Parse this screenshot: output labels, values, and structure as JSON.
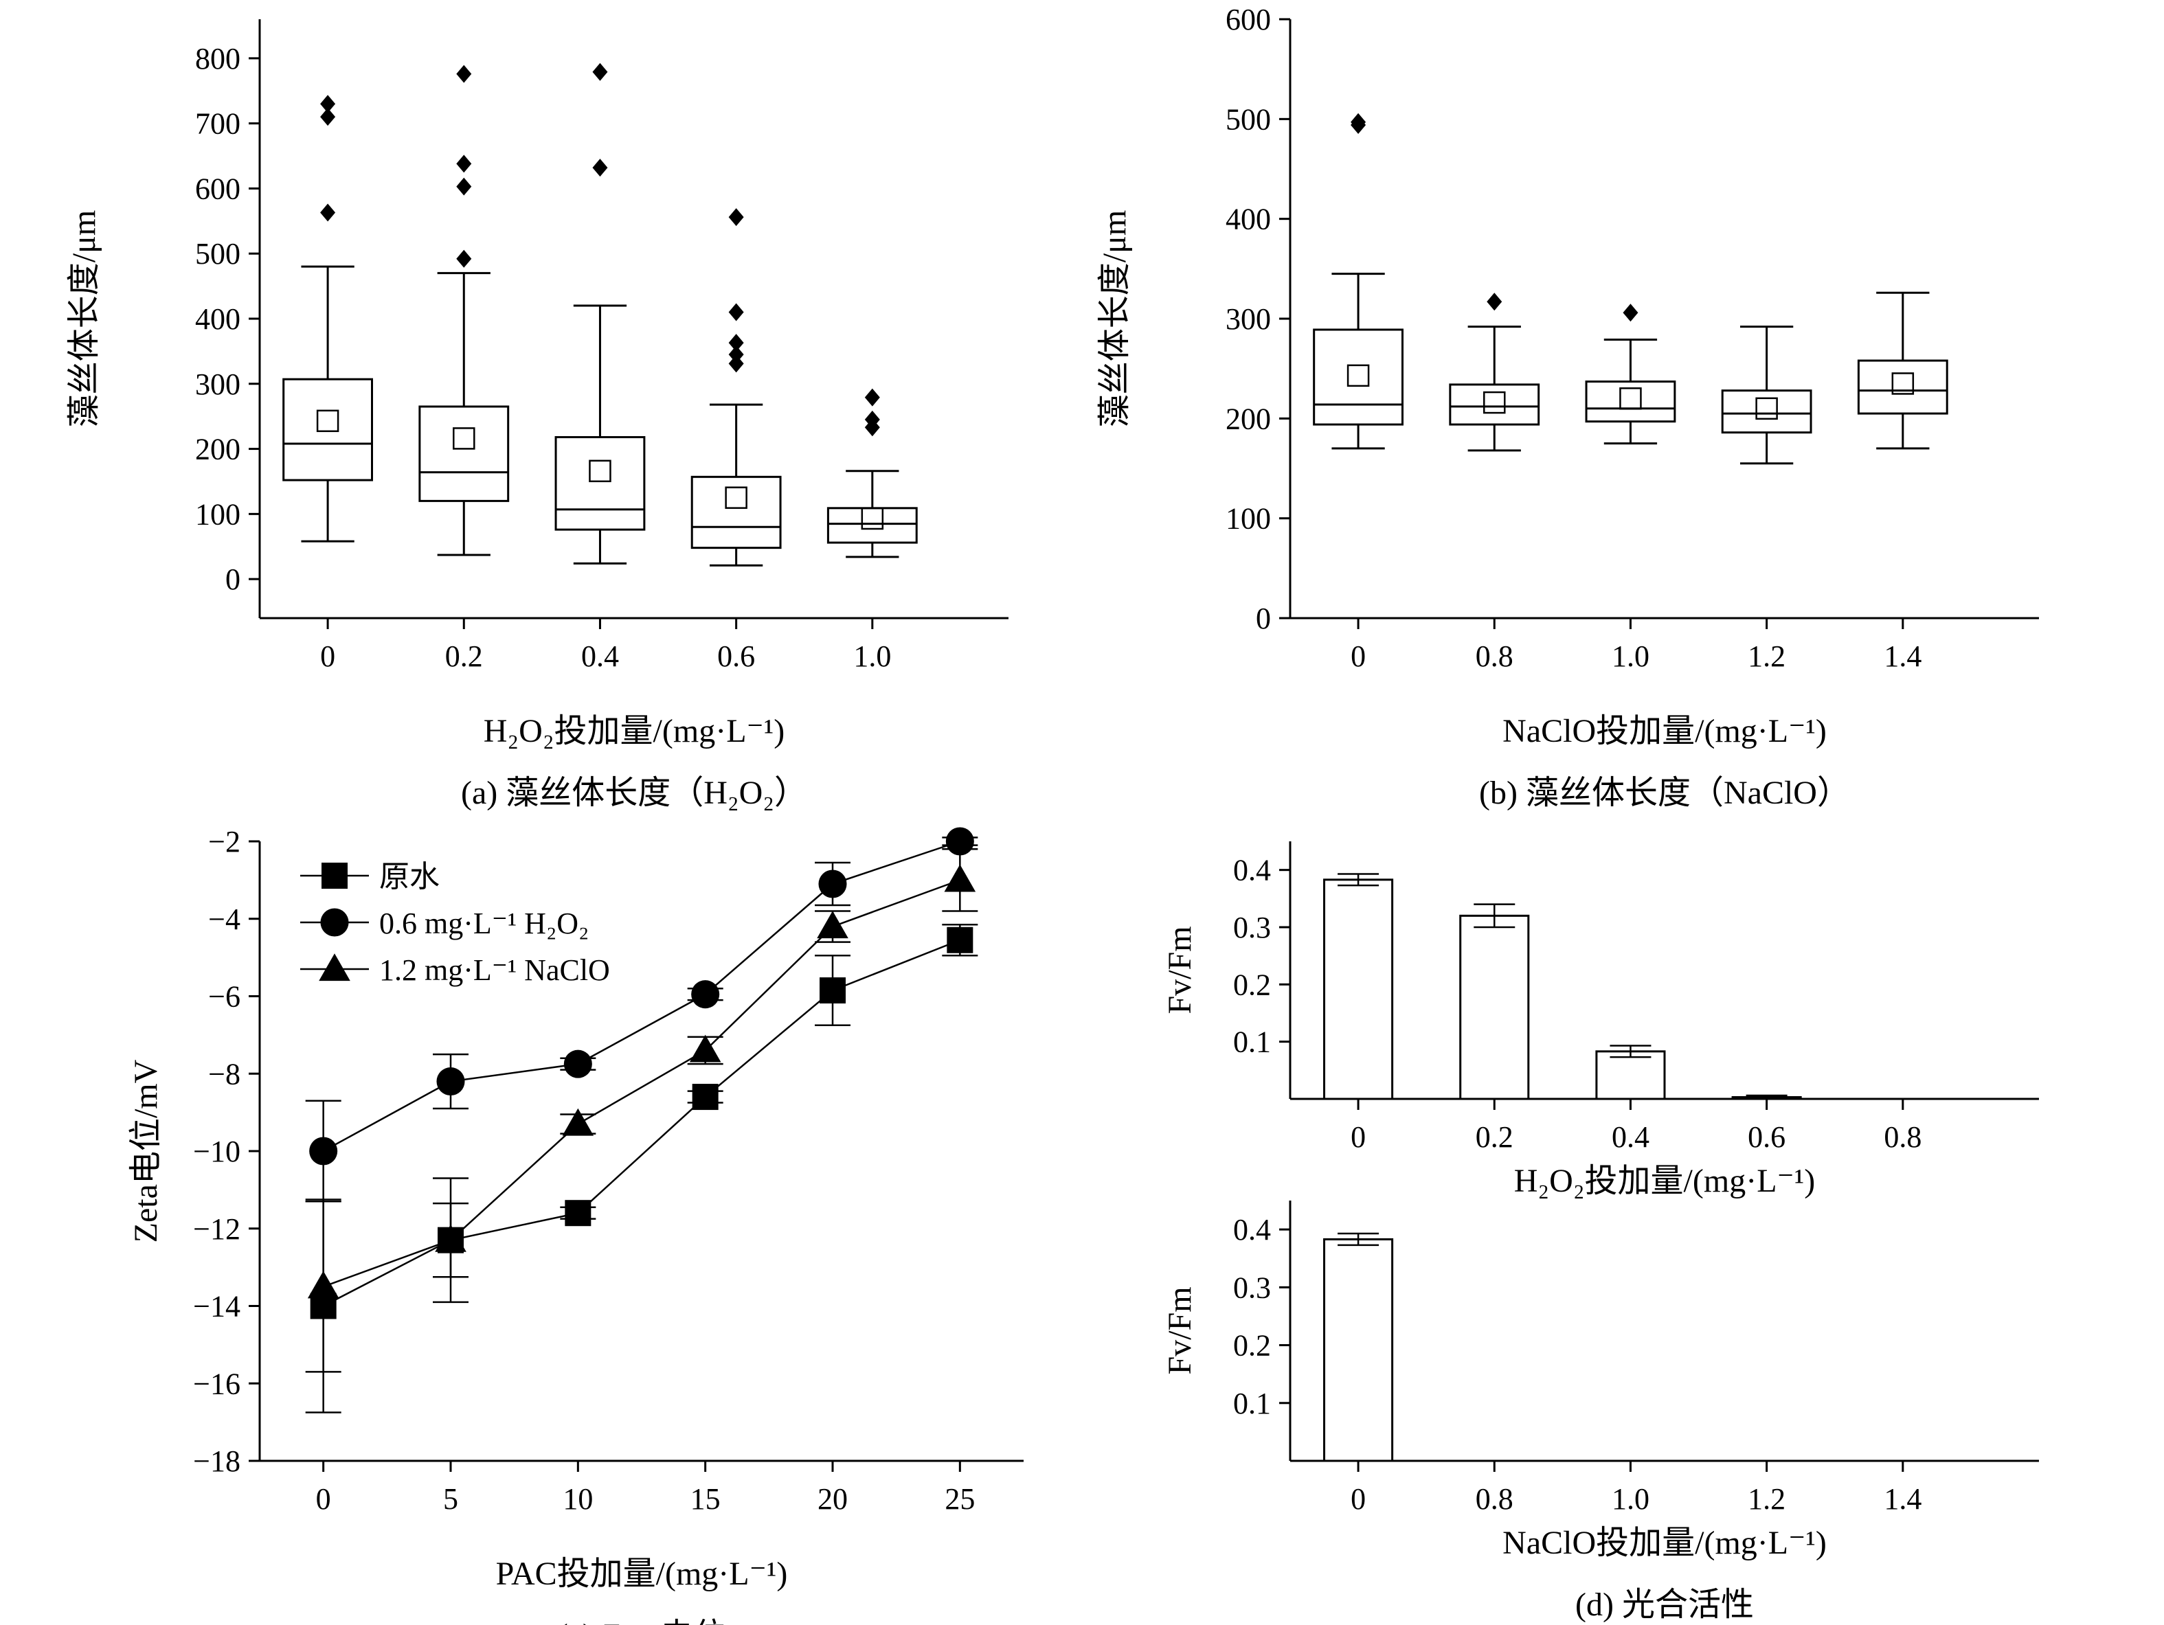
{
  "chart_data": [
    {
      "type": "box",
      "caption": "(a) 藻丝体长度（H₂O₂）",
      "ylabel": "藻丝体长度/μm",
      "xlabel": "H₂O₂投加量/(mg·L⁻¹)",
      "ylim": [
        -60,
        860
      ],
      "yticks": [
        0,
        100,
        200,
        300,
        400,
        500,
        600,
        700,
        800
      ],
      "categories": [
        "0",
        "0.2",
        "0.4",
        "0.6",
        "1.0"
      ],
      "boxes": [
        {
          "whisker_low": 58,
          "q1": 152,
          "median": 208,
          "q3": 307,
          "whisker_high": 480,
          "mean": 243,
          "outliers": [
            563,
            710,
            730
          ]
        },
        {
          "whisker_low": 37,
          "q1": 120,
          "median": 164,
          "q3": 265,
          "whisker_high": 470,
          "mean": 216,
          "outliers": [
            492,
            603,
            638,
            776
          ]
        },
        {
          "whisker_low": 24,
          "q1": 76,
          "median": 107,
          "q3": 218,
          "whisker_high": 420,
          "mean": 166,
          "outliers": [
            632,
            779
          ]
        },
        {
          "whisker_low": 21,
          "q1": 48,
          "median": 80,
          "q3": 157,
          "whisker_high": 268,
          "mean": 125,
          "outliers": [
            331,
            345,
            363,
            410,
            556
          ]
        },
        {
          "whisker_low": 34,
          "q1": 56,
          "median": 85,
          "q3": 109,
          "whisker_high": 166,
          "mean": 93,
          "outliers": [
            233,
            245,
            279
          ]
        }
      ]
    },
    {
      "type": "box",
      "caption": "(b) 藻丝体长度（NaClO）",
      "ylabel": "藻丝体长度/μm",
      "xlabel": "NaClO投加量/(mg·L⁻¹)",
      "ylim": [
        0,
        600
      ],
      "yticks": [
        0,
        100,
        200,
        300,
        400,
        500,
        600
      ],
      "categories": [
        "0",
        "0.8",
        "1.0",
        "1.2",
        "1.4"
      ],
      "boxes": [
        {
          "whisker_low": 170,
          "q1": 194,
          "median": 214,
          "q3": 289,
          "whisker_high": 345,
          "mean": 243,
          "outliers": [
            494,
            497
          ]
        },
        {
          "whisker_low": 168,
          "q1": 194,
          "median": 212,
          "q3": 234,
          "whisker_high": 292,
          "mean": 216,
          "outliers": [
            317
          ]
        },
        {
          "whisker_low": 175,
          "q1": 197,
          "median": 210,
          "q3": 237,
          "whisker_high": 279,
          "mean": 220,
          "outliers": [
            306
          ]
        },
        {
          "whisker_low": 155,
          "q1": 186,
          "median": 205,
          "q3": 228,
          "whisker_high": 292,
          "mean": 210,
          "outliers": []
        },
        {
          "whisker_low": 170,
          "q1": 205,
          "median": 228,
          "q3": 258,
          "whisker_high": 326,
          "mean": 235,
          "outliers": []
        }
      ]
    },
    {
      "type": "line",
      "caption": "(c) Zeta电位",
      "ylabel": "Zeta电位/mV",
      "xlabel": "PAC投加量/(mg·L⁻¹)",
      "x": [
        0,
        5,
        10,
        15,
        20,
        25
      ],
      "xlim": [
        -2.5,
        27.5
      ],
      "ylim": [
        -18,
        -2
      ],
      "xticks": [
        0,
        5,
        10,
        15,
        20,
        25
      ],
      "yticks": [
        -2,
        -4,
        -6,
        -8,
        -10,
        -12,
        -14,
        -16,
        -18
      ],
      "legend_position": "top-left",
      "series": [
        {
          "name": "原水",
          "marker": "square",
          "values": [
            -14.0,
            -12.3,
            -11.6,
            -8.6,
            -5.85,
            -4.55
          ],
          "errors": [
            2.75,
            0.95,
            0.15,
            0.15,
            0.9,
            0.4
          ]
        },
        {
          "name": "0.6 mg·L⁻¹ H₂O₂",
          "marker": "circle",
          "values": [
            -10.0,
            -8.2,
            -7.75,
            -5.95,
            -3.1,
            -2.0
          ],
          "errors": [
            1.3,
            0.7,
            0.15,
            0.15,
            0.55,
            0.1
          ]
        },
        {
          "name": "1.2 mg·L⁻¹ NaClO",
          "marker": "triangle",
          "values": [
            -13.5,
            -12.3,
            -9.3,
            -7.4,
            -4.2,
            -3.0
          ],
          "errors": [
            2.2,
            1.6,
            0.25,
            0.35,
            0.4,
            0.8
          ]
        }
      ]
    },
    {
      "type": "bar",
      "caption": "",
      "ylabel": "Fv/Fm",
      "xlabel": "H₂O₂投加量/(mg·L⁻¹)",
      "categories": [
        "0",
        "0.2",
        "0.4",
        "0.6",
        "0.8"
      ],
      "values": [
        0.383,
        0.32,
        0.083,
        0.003,
        0
      ],
      "errors": [
        0.01,
        0.02,
        0.01,
        0.003,
        0
      ],
      "ylim": [
        0,
        0.45
      ],
      "yticks": [
        0.1,
        0.2,
        0.3,
        0.4
      ]
    },
    {
      "type": "bar",
      "caption": "(d) 光合活性",
      "ylabel": "Fv/Fm",
      "xlabel": "NaClO投加量/(mg·L⁻¹)",
      "categories": [
        "0",
        "0.8",
        "1.0",
        "1.2",
        "1.4"
      ],
      "values": [
        0.383,
        0,
        0,
        0,
        0
      ],
      "errors": [
        0.01,
        0,
        0,
        0,
        0
      ],
      "ylim": [
        0,
        0.45
      ],
      "yticks": [
        0.1,
        0.2,
        0.3,
        0.4
      ]
    }
  ]
}
